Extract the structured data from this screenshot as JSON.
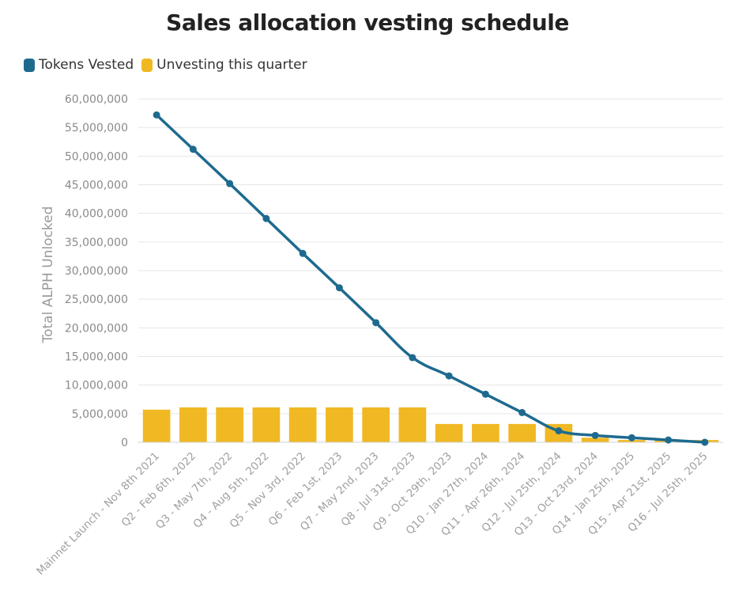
{
  "chart_data": {
    "type": "bar+line",
    "title": "Sales allocation vesting schedule",
    "ylabel": "Total ALPH Unlocked",
    "xlabel": "",
    "ylim": [
      0,
      60000000
    ],
    "yticks": [
      0,
      5000000,
      10000000,
      15000000,
      20000000,
      25000000,
      30000000,
      35000000,
      40000000,
      45000000,
      50000000,
      55000000,
      60000000
    ],
    "ytick_labels": [
      "0",
      "5,000,000",
      "10,000,000",
      "15,000,000",
      "20,000,000",
      "25,000,000",
      "30,000,000",
      "35,000,000",
      "40,000,000",
      "45,000,000",
      "50,000,000",
      "55,000,000",
      "60,000,000"
    ],
    "grid": true,
    "legend_position": "top-left",
    "categories": [
      "Mainnet Launch - Nov 8th 2021",
      "Q2 - Feb 6th, 2022",
      "Q3 - May 7th, 2022",
      "Q4 - Aug 5th, 2022",
      "Q5 - Nov 3rd, 2022",
      "Q6 - Feb 1st, 2023",
      "Q7 - May 2nd, 2023",
      "Q8 - Jul 31st, 2023",
      "Q9 - Oct 29th, 2023",
      "Q10 - Jan 27th, 2024",
      "Q11 - Apr 26th, 2024",
      "Q12 - Jul 25th, 2024",
      "Q13 - Oct 23rd, 2024",
      "Q14 - Jan 25th, 2025",
      "Q15 - Apr 21st, 2025",
      "Q16 - Jul 25th, 2025"
    ],
    "series": [
      {
        "name": "Tokens Vested",
        "kind": "line",
        "color": "#1e6a8f",
        "values": [
          57200000,
          51200000,
          45200000,
          39100000,
          33000000,
          27000000,
          20900000,
          14800000,
          11600000,
          8400000,
          5200000,
          2000000,
          1200000,
          800000,
          400000,
          0
        ]
      },
      {
        "name": "Unvesting this quarter",
        "kind": "bar",
        "color": "#f0b823",
        "values": [
          5700000,
          6100000,
          6100000,
          6100000,
          6100000,
          6100000,
          6100000,
          6100000,
          3200000,
          3200000,
          3200000,
          3200000,
          800000,
          400000,
          400000,
          400000
        ]
      }
    ]
  }
}
